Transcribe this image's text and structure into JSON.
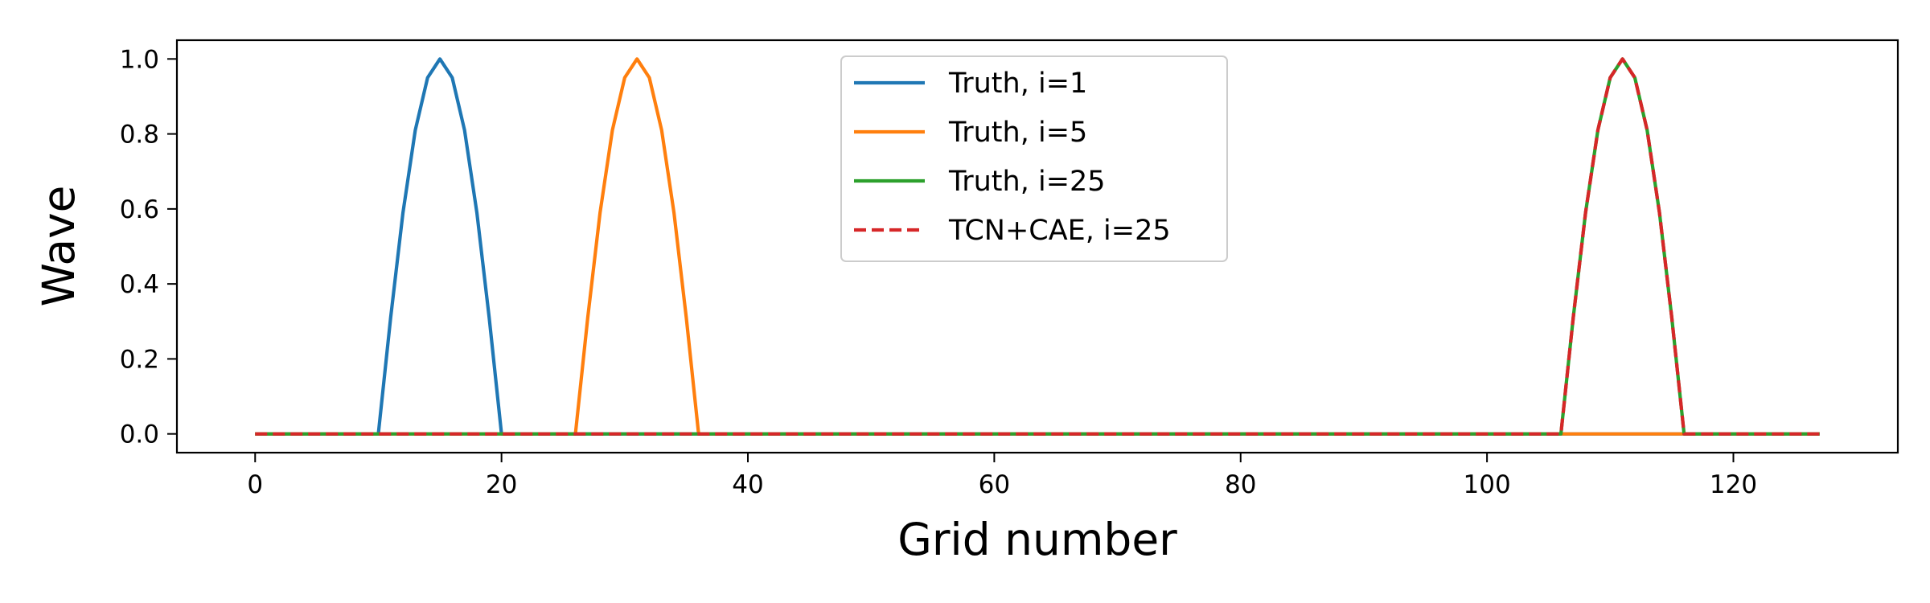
{
  "chart_data": {
    "type": "line",
    "title": "",
    "xlabel": "Grid number",
    "ylabel": "Wave",
    "xlim": [
      -6.35,
      133.35
    ],
    "ylim": [
      -0.05,
      1.05
    ],
    "xticks": [
      0,
      20,
      40,
      60,
      80,
      100,
      120
    ],
    "xtick_labels": [
      "0",
      "20",
      "40",
      "60",
      "80",
      "100",
      "120"
    ],
    "yticks": [
      0.0,
      0.2,
      0.4,
      0.6,
      0.8,
      1.0
    ],
    "ytick_labels": [
      "0.0",
      "0.2",
      "0.4",
      "0.6",
      "0.8",
      "1.0"
    ],
    "grid": false,
    "legend_position": "top-center",
    "series": [
      {
        "name": "Truth, i=1",
        "color": "#1f77b4",
        "dash": "solid",
        "points": [
          [
            0,
            0
          ],
          [
            10,
            0
          ],
          [
            11,
            0.31
          ],
          [
            12,
            0.59
          ],
          [
            13,
            0.81
          ],
          [
            14,
            0.95
          ],
          [
            15,
            1.0
          ],
          [
            16,
            0.95
          ],
          [
            17,
            0.81
          ],
          [
            18,
            0.59
          ],
          [
            19,
            0.31
          ],
          [
            20,
            0
          ],
          [
            127,
            0
          ]
        ]
      },
      {
        "name": "Truth, i=5",
        "color": "#ff7f0e",
        "dash": "solid",
        "points": [
          [
            0,
            0
          ],
          [
            26,
            0
          ],
          [
            27,
            0.31
          ],
          [
            28,
            0.59
          ],
          [
            29,
            0.81
          ],
          [
            30,
            0.95
          ],
          [
            31,
            1.0
          ],
          [
            32,
            0.95
          ],
          [
            33,
            0.81
          ],
          [
            34,
            0.59
          ],
          [
            35,
            0.31
          ],
          [
            36,
            0
          ],
          [
            127,
            0
          ]
        ]
      },
      {
        "name": "Truth, i=25",
        "color": "#2ca02c",
        "dash": "solid",
        "points": [
          [
            0,
            0
          ],
          [
            106,
            0
          ],
          [
            107,
            0.31
          ],
          [
            108,
            0.59
          ],
          [
            109,
            0.81
          ],
          [
            110,
            0.95
          ],
          [
            111,
            1.0
          ],
          [
            112,
            0.95
          ],
          [
            113,
            0.81
          ],
          [
            114,
            0.59
          ],
          [
            115,
            0.31
          ],
          [
            116,
            0
          ],
          [
            127,
            0
          ]
        ]
      },
      {
        "name": "TCN+CAE, i=25",
        "color": "#d62728",
        "dash": "dashed",
        "points": [
          [
            0,
            0
          ],
          [
            106,
            0
          ],
          [
            107,
            0.31
          ],
          [
            108,
            0.59
          ],
          [
            109,
            0.81
          ],
          [
            110,
            0.95
          ],
          [
            111,
            1.0
          ],
          [
            112,
            0.95
          ],
          [
            113,
            0.81
          ],
          [
            114,
            0.59
          ],
          [
            115,
            0.31
          ],
          [
            116,
            0
          ],
          [
            127,
            0
          ]
        ]
      }
    ]
  }
}
